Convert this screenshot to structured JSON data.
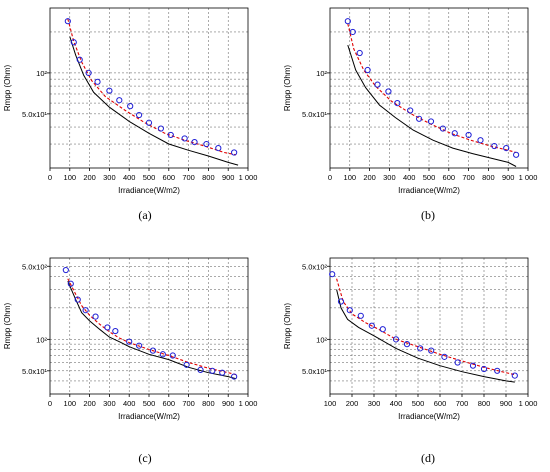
{
  "chart_data": [
    {
      "type": "line",
      "panel_label": "(a)",
      "xlabel": "Irradiance(W/m2)",
      "ylabel": "Rmpp (Ohm)",
      "xlim": [
        0,
        1000
      ],
      "ylim": [
        20,
        300
      ],
      "yscale": "log",
      "grid": true,
      "xticks": [
        0,
        100,
        200,
        300,
        400,
        500,
        600,
        700,
        800,
        900,
        1000
      ],
      "xtick_labels": [
        "0",
        "100",
        "200",
        "300",
        "400",
        "500",
        "600",
        "700",
        "800",
        "900",
        "1 000"
      ],
      "ytick_labels": [
        {
          "value": 100,
          "label": "10²"
        },
        {
          "value": 50,
          "label": "5.0x10¹"
        }
      ],
      "series": [
        {
          "style": "solid-black",
          "x": [
            100,
            130,
            170,
            220,
            300,
            400,
            500,
            600,
            700,
            800,
            900,
            950
          ],
          "y": [
            185,
            135,
            96,
            72,
            56,
            44,
            36,
            30,
            27,
            24.5,
            22,
            21
          ]
        },
        {
          "style": "dashed-red",
          "x": [
            90,
            120,
            160,
            210,
            280,
            380,
            480,
            580,
            680,
            780,
            880,
            940
          ],
          "y": [
            250,
            170,
            120,
            88,
            67,
            53,
            43,
            36,
            32,
            29,
            26,
            25
          ]
        },
        {
          "style": "circles-blue",
          "x": [
            90,
            120,
            150,
            195,
            240,
            300,
            350,
            405,
            450,
            500,
            560,
            610,
            680,
            730,
            790,
            850,
            930
          ],
          "y": [
            240,
            168,
            125,
            100,
            86,
            74,
            63,
            57,
            49,
            43,
            39,
            35,
            33,
            31,
            30,
            28,
            26
          ]
        }
      ]
    },
    {
      "type": "line",
      "panel_label": "(b)",
      "xlabel": "Irradiance(W/m2)",
      "ylabel": "Rmpp (Ohm)",
      "xlim": [
        0,
        1000
      ],
      "ylim": [
        20,
        300
      ],
      "yscale": "log",
      "grid": true,
      "xticks": [
        0,
        100,
        200,
        300,
        400,
        500,
        600,
        700,
        800,
        900,
        1000
      ],
      "xtick_labels": [
        "0",
        "100",
        "200",
        "300",
        "400",
        "500",
        "600",
        "700",
        "800",
        "900",
        "1 000"
      ],
      "ytick_labels": [
        {
          "value": 100,
          "label": "10²"
        },
        {
          "value": 50,
          "label": "5.0x10¹"
        }
      ],
      "series": [
        {
          "style": "solid-black",
          "x": [
            90,
            130,
            180,
            250,
            330,
            420,
            520,
            620,
            720,
            820,
            900,
            940
          ],
          "y": [
            160,
            105,
            78,
            58,
            47,
            38,
            32,
            28,
            25.5,
            23.5,
            22,
            20.5
          ]
        },
        {
          "style": "dashed-red",
          "x": [
            90,
            120,
            170,
            230,
            310,
            410,
            510,
            610,
            710,
            810,
            900,
            940
          ],
          "y": [
            230,
            150,
            105,
            80,
            62,
            50,
            42,
            36,
            32,
            29,
            27,
            26
          ]
        },
        {
          "style": "circles-blue",
          "x": [
            90,
            115,
            150,
            190,
            240,
            295,
            340,
            405,
            450,
            510,
            570,
            630,
            700,
            760,
            830,
            890,
            940
          ],
          "y": [
            240,
            200,
            140,
            105,
            82,
            73,
            60,
            53,
            46,
            44,
            39,
            36,
            35,
            32,
            29,
            28,
            25
          ]
        }
      ]
    },
    {
      "type": "line",
      "panel_label": "(c)",
      "xlabel": "Irradiance(W/m2)",
      "ylabel": "Rmpp (Ohm)",
      "xlim": [
        0,
        1000
      ],
      "ylim": [
        30,
        600
      ],
      "yscale": "log",
      "grid": true,
      "xticks": [
        0,
        100,
        200,
        300,
        400,
        500,
        600,
        700,
        800,
        900,
        1000
      ],
      "xtick_labels": [
        "0",
        "100",
        "200",
        "300",
        "400",
        "500",
        "600",
        "700",
        "800",
        "900",
        "1 000"
      ],
      "ytick_labels": [
        {
          "value": 500,
          "label": "5.0x10²"
        },
        {
          "value": 100,
          "label": "10²"
        },
        {
          "value": 50,
          "label": "5.0x10¹"
        }
      ],
      "series": [
        {
          "style": "solid-black",
          "x": [
            90,
            130,
            160,
            200,
            250,
            300,
            350,
            400,
            500,
            600,
            700,
            800,
            900,
            940
          ],
          "y": [
            360,
            240,
            180,
            150,
            125,
            105,
            95,
            85,
            72,
            64,
            54,
            48,
            44,
            42
          ]
        },
        {
          "style": "dashed-red",
          "x": [
            90,
            130,
            160,
            200,
            250,
            300,
            350,
            400,
            500,
            600,
            700,
            800,
            900,
            940
          ],
          "y": [
            380,
            270,
            210,
            170,
            140,
            118,
            103,
            93,
            80,
            70,
            60,
            53,
            48,
            46
          ]
        },
        {
          "style": "circles-blue",
          "x": [
            80,
            105,
            140,
            180,
            230,
            290,
            330,
            400,
            450,
            520,
            570,
            620,
            690,
            760,
            820,
            870,
            930
          ],
          "y": [
            460,
            340,
            240,
            190,
            165,
            130,
            120,
            95,
            87,
            78,
            72,
            70,
            57,
            51,
            50,
            48,
            44
          ]
        }
      ]
    },
    {
      "type": "line",
      "panel_label": "(d)",
      "xlabel": "Irradiance(W/m2)",
      "ylabel": "Rmpp (Ohm)",
      "xlim": [
        100,
        1000
      ],
      "ylim": [
        30,
        600
      ],
      "yscale": "log",
      "grid": true,
      "xticks": [
        100,
        200,
        300,
        400,
        500,
        600,
        700,
        800,
        900,
        1000
      ],
      "xtick_labels": [
        "100",
        "200",
        "300",
        "400",
        "500",
        "600",
        "700",
        "800",
        "900",
        "1 000"
      ],
      "ytick_labels": [
        {
          "value": 500,
          "label": "5.0x10²"
        },
        {
          "value": 100,
          "label": "10²"
        },
        {
          "value": 50,
          "label": "5.0x10¹"
        }
      ],
      "series": [
        {
          "style": "solid-black",
          "x": [
            130,
            150,
            180,
            230,
            300,
            400,
            500,
            600,
            700,
            800,
            900,
            940
          ],
          "y": [
            300,
            200,
            155,
            130,
            108,
            82,
            66,
            56,
            49,
            44,
            40,
            39
          ]
        },
        {
          "style": "dashed-red",
          "x": [
            130,
            160,
            200,
            260,
            320,
            400,
            500,
            600,
            700,
            800,
            900,
            940
          ],
          "y": [
            380,
            230,
            175,
            145,
            125,
            100,
            85,
            72,
            62,
            54,
            48,
            46
          ]
        },
        {
          "style": "circles-blue",
          "x": [
            110,
            150,
            190,
            240,
            290,
            340,
            400,
            450,
            510,
            560,
            620,
            680,
            750,
            800,
            860,
            940
          ],
          "y": [
            420,
            230,
            190,
            168,
            135,
            125,
            100,
            90,
            82,
            78,
            68,
            60,
            56,
            52,
            50,
            45
          ]
        }
      ]
    }
  ]
}
